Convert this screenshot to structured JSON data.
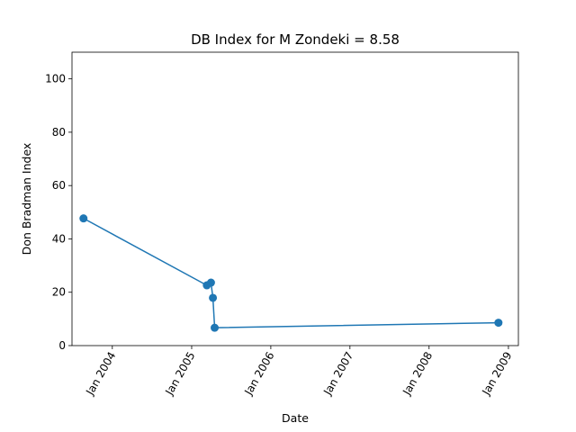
{
  "chart_data": {
    "type": "line",
    "title": "DB Index for M Zondeki = 8.58",
    "xlabel": "Date",
    "ylabel": "Don Bradman Index",
    "xlim": [
      "2003-06-29",
      "2009-02-16"
    ],
    "ylim": [
      0,
      110
    ],
    "x_ticks": [
      "2004-01-01",
      "2005-01-01",
      "2006-01-01",
      "2007-01-01",
      "2008-01-01",
      "2009-01-01"
    ],
    "x_tick_labels": [
      "Jan 2004",
      "Jan 2005",
      "Jan 2006",
      "Jan 2007",
      "Jan 2008",
      "Jan 2009"
    ],
    "y_ticks": [
      0,
      20,
      40,
      60,
      80,
      100
    ],
    "y_tick_labels": [
      "0",
      "20",
      "40",
      "60",
      "80",
      "100"
    ],
    "grid": false,
    "series": [
      {
        "color": "#1f77b4",
        "marker": "circle",
        "points": [
          {
            "x": "2003-08-21",
            "y": 47.7
          },
          {
            "x": "2005-03-12",
            "y": 22.6
          },
          {
            "x": "2005-03-31",
            "y": 23.6
          },
          {
            "x": "2005-04-09",
            "y": 17.9
          },
          {
            "x": "2005-04-17",
            "y": 6.7
          },
          {
            "x": "2008-11-16",
            "y": 8.58
          }
        ]
      }
    ]
  }
}
